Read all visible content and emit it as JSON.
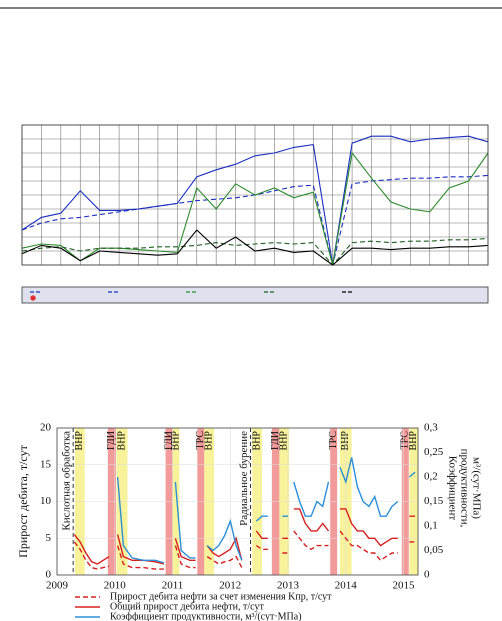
{
  "chart_data": [
    {
      "type": "line",
      "grid": true,
      "tick_labels": false,
      "x": [
        0,
        1,
        2,
        3,
        4,
        5,
        6,
        7,
        8,
        9,
        10,
        11,
        12,
        13,
        14,
        15,
        16,
        17,
        18,
        19,
        20,
        21,
        22,
        23,
        24
      ],
      "xlim": [
        0,
        24
      ],
      "ylim": [
        0,
        100
      ],
      "yticks": [
        0,
        10,
        20,
        30,
        40,
        50,
        60,
        70,
        80,
        90,
        100
      ],
      "series": [
        {
          "color": "#1a2fc0",
          "dash": "solid",
          "values": [
            25,
            34,
            37,
            53,
            39,
            39,
            40,
            42,
            44,
            63,
            68,
            72,
            78,
            80,
            84,
            86,
            0,
            87,
            92,
            92,
            88,
            90,
            91,
            92,
            88
          ]
        },
        {
          "color": "#1a2fc0",
          "dash": "dashed",
          "values": [
            25,
            30,
            33,
            34,
            36,
            38,
            40,
            42,
            44,
            46,
            47,
            48,
            50,
            53,
            56,
            57,
            0,
            58,
            60,
            61,
            62,
            62,
            63,
            63,
            64
          ]
        },
        {
          "color": "#2e8b2e",
          "dash": "solid",
          "values": [
            12,
            15,
            14,
            3,
            12,
            12,
            11,
            10,
            9,
            55,
            40,
            58,
            50,
            55,
            48,
            52,
            0,
            80,
            62,
            45,
            40,
            38,
            55,
            60,
            80
          ]
        },
        {
          "color": "#1f5f1f",
          "dash": "dashed",
          "values": [
            10,
            12,
            13,
            10,
            12,
            12,
            12,
            13,
            13,
            14,
            16,
            14,
            15,
            16,
            15,
            16,
            0,
            16,
            17,
            16,
            17,
            17,
            18,
            18,
            19
          ]
        },
        {
          "color": "#000000",
          "dash": "solid",
          "values": [
            8,
            14,
            12,
            3,
            10,
            9,
            8,
            7,
            8,
            25,
            12,
            20,
            10,
            12,
            9,
            10,
            0,
            12,
            12,
            11,
            12,
            12,
            13,
            13,
            14
          ]
        }
      ]
    },
    {
      "type": "line",
      "grid": true,
      "tick_labels": true,
      "y_label": "Прирост дебита, т/сут",
      "y2_label": [
        "Коэффициент",
        "продуктивности,",
        "м³/(сут·МПа)"
      ],
      "x": [
        2009.3,
        2009.4,
        2009.5,
        2009.6,
        2009.7,
        2009.8,
        2009.9,
        2009.95,
        2010.05,
        2010.15,
        2010.3,
        2010.5,
        2010.7,
        2010.85,
        2010.95,
        2011.05,
        2011.15,
        2011.3,
        2011.4,
        2011.5,
        2011.6,
        2011.7,
        2011.8,
        2011.9,
        2012.0,
        2012.1,
        2012.2,
        2012.3,
        2012.45,
        2012.55,
        2012.65,
        2012.75,
        2012.9,
        2013.0,
        2013.05,
        2013.1,
        2013.2,
        2013.3,
        2013.4,
        2013.5,
        2013.6,
        2013.7,
        2013.8,
        2013.9,
        2014.0,
        2014.1,
        2014.2,
        2014.3,
        2014.4,
        2014.5,
        2014.6,
        2014.7,
        2014.8,
        2014.9,
        2015.0,
        2015.1,
        2015.2
      ],
      "xlim": [
        2009,
        2015.25
      ],
      "xticks": [
        2009,
        2010,
        2011,
        2012,
        2013,
        2014,
        2015
      ],
      "ylim": [
        0,
        20
      ],
      "yticks": [
        0,
        5,
        10,
        15,
        20
      ],
      "y2lim": [
        0,
        0.3
      ],
      "y2ticks": [
        0,
        {
          "value": 0.05,
          "label": "0,05"
        },
        {
          "value": 0.1,
          "label": "0,1"
        },
        {
          "value": 0.15,
          "label": "0,15"
        },
        {
          "value": 0.2,
          "label": "0,2"
        },
        {
          "value": 0.25,
          "label": "0,25"
        },
        {
          "value": 0.3,
          "label": "0,3"
        }
      ],
      "markers": [
        {
          "x": 2009.28,
          "label": "Кислотная обработка"
        },
        {
          "x": 2012.35,
          "label": "Радиальное бурение"
        }
      ],
      "bands": [
        {
          "x0": 2009.31,
          "x1": 2009.48,
          "color": "#f7f08a",
          "label": "ВНР"
        },
        {
          "x0": 2009.88,
          "x1": 2010.02,
          "color": "#f08a8a",
          "label": "ГДИ"
        },
        {
          "x0": 2010.03,
          "x1": 2010.22,
          "color": "#f7f08a",
          "label": "ВНР"
        },
        {
          "x0": 2010.88,
          "x1": 2011.0,
          "color": "#f08a8a",
          "label": "ГДИ"
        },
        {
          "x0": 2011.0,
          "x1": 2011.12,
          "color": "#f7f08a",
          "label": "ВНР"
        },
        {
          "x0": 2011.43,
          "x1": 2011.55,
          "color": "#f08a8a",
          "label": "ТРС"
        },
        {
          "x0": 2011.55,
          "x1": 2011.72,
          "color": "#f7f08a",
          "label": "ВНР"
        },
        {
          "x0": 2012.38,
          "x1": 2012.55,
          "color": "#f7f08a",
          "label": "ВНР"
        },
        {
          "x0": 2012.72,
          "x1": 2012.85,
          "color": "#f08a8a",
          "label": "ГДИ"
        },
        {
          "x0": 2012.85,
          "x1": 2013.02,
          "color": "#f7f08a",
          "label": "ВНР"
        },
        {
          "x0": 2013.73,
          "x1": 2013.85,
          "color": "#f08a8a",
          "label": "ТРС"
        },
        {
          "x0": 2013.9,
          "x1": 2014.1,
          "color": "#f7f08a",
          "label": "ВНР"
        },
        {
          "x0": 2014.97,
          "x1": 2015.09,
          "color": "#f08a8a",
          "label": "ТРС"
        },
        {
          "x0": 2015.1,
          "x1": 2015.25,
          "color": "#f7f08a",
          "label": "ВНР"
        }
      ],
      "series": [
        {
          "name": "Прирост дебита нефти за счет изменения Kпр, т/сут",
          "color": "#d62020",
          "dash": "dashed",
          "values": [
            4.5,
            3.5,
            2,
            1,
            0.8,
            1,
            1.2,
            null,
            4,
            1.5,
            1,
            1,
            0.8,
            0.8,
            null,
            4,
            1.5,
            1,
            1,
            null,
            2.5,
            2,
            1.5,
            1.8,
            2,
            2.5,
            1,
            null,
            4,
            3.5,
            3.5,
            null,
            3,
            3,
            null,
            6,
            5,
            4,
            3.5,
            4,
            4,
            4,
            null,
            6,
            5,
            4,
            4,
            3.5,
            3,
            3,
            2,
            2.5,
            3,
            3,
            null,
            4.5,
            4.5
          ]
        },
        {
          "name": "Общий прирост дебита нефти, т/сут",
          "color": "#d62020",
          "dash": "solid",
          "values": [
            5.5,
            4.5,
            3,
            1.8,
            1.5,
            2,
            2.5,
            null,
            5.5,
            2.5,
            2,
            2,
            1.8,
            1.5,
            null,
            5,
            2.5,
            2,
            2,
            null,
            4,
            3,
            2.5,
            3,
            3.5,
            5,
            2,
            null,
            6,
            5,
            5,
            null,
            5,
            5,
            null,
            9,
            9,
            7,
            6,
            6,
            7,
            6,
            null,
            9,
            9,
            7,
            6,
            6,
            5,
            5,
            4,
            4.5,
            5,
            5,
            null,
            8,
            8
          ]
        },
        {
          "name": "Коэффициент продуктивности, м³/(сут·МПа)",
          "color": "#2a8fd8",
          "dash": "solid",
          "axis": "y2",
          "values": [
            null,
            null,
            null,
            null,
            null,
            null,
            null,
            null,
            0.2,
            0.06,
            0.035,
            0.03,
            0.03,
            0.025,
            null,
            0.19,
            0.05,
            0.035,
            0.035,
            null,
            0.06,
            0.05,
            0.06,
            0.08,
            0.11,
            0.06,
            0.03,
            null,
            0.11,
            0.12,
            0.12,
            null,
            0.12,
            0.12,
            null,
            0.19,
            0.15,
            0.12,
            0.12,
            0.15,
            0.14,
            0.19,
            null,
            0.22,
            0.19,
            0.24,
            0.18,
            0.15,
            0.14,
            0.16,
            0.12,
            0.12,
            0.14,
            0.15,
            null,
            0.2,
            0.21
          ]
        }
      ]
    }
  ]
}
